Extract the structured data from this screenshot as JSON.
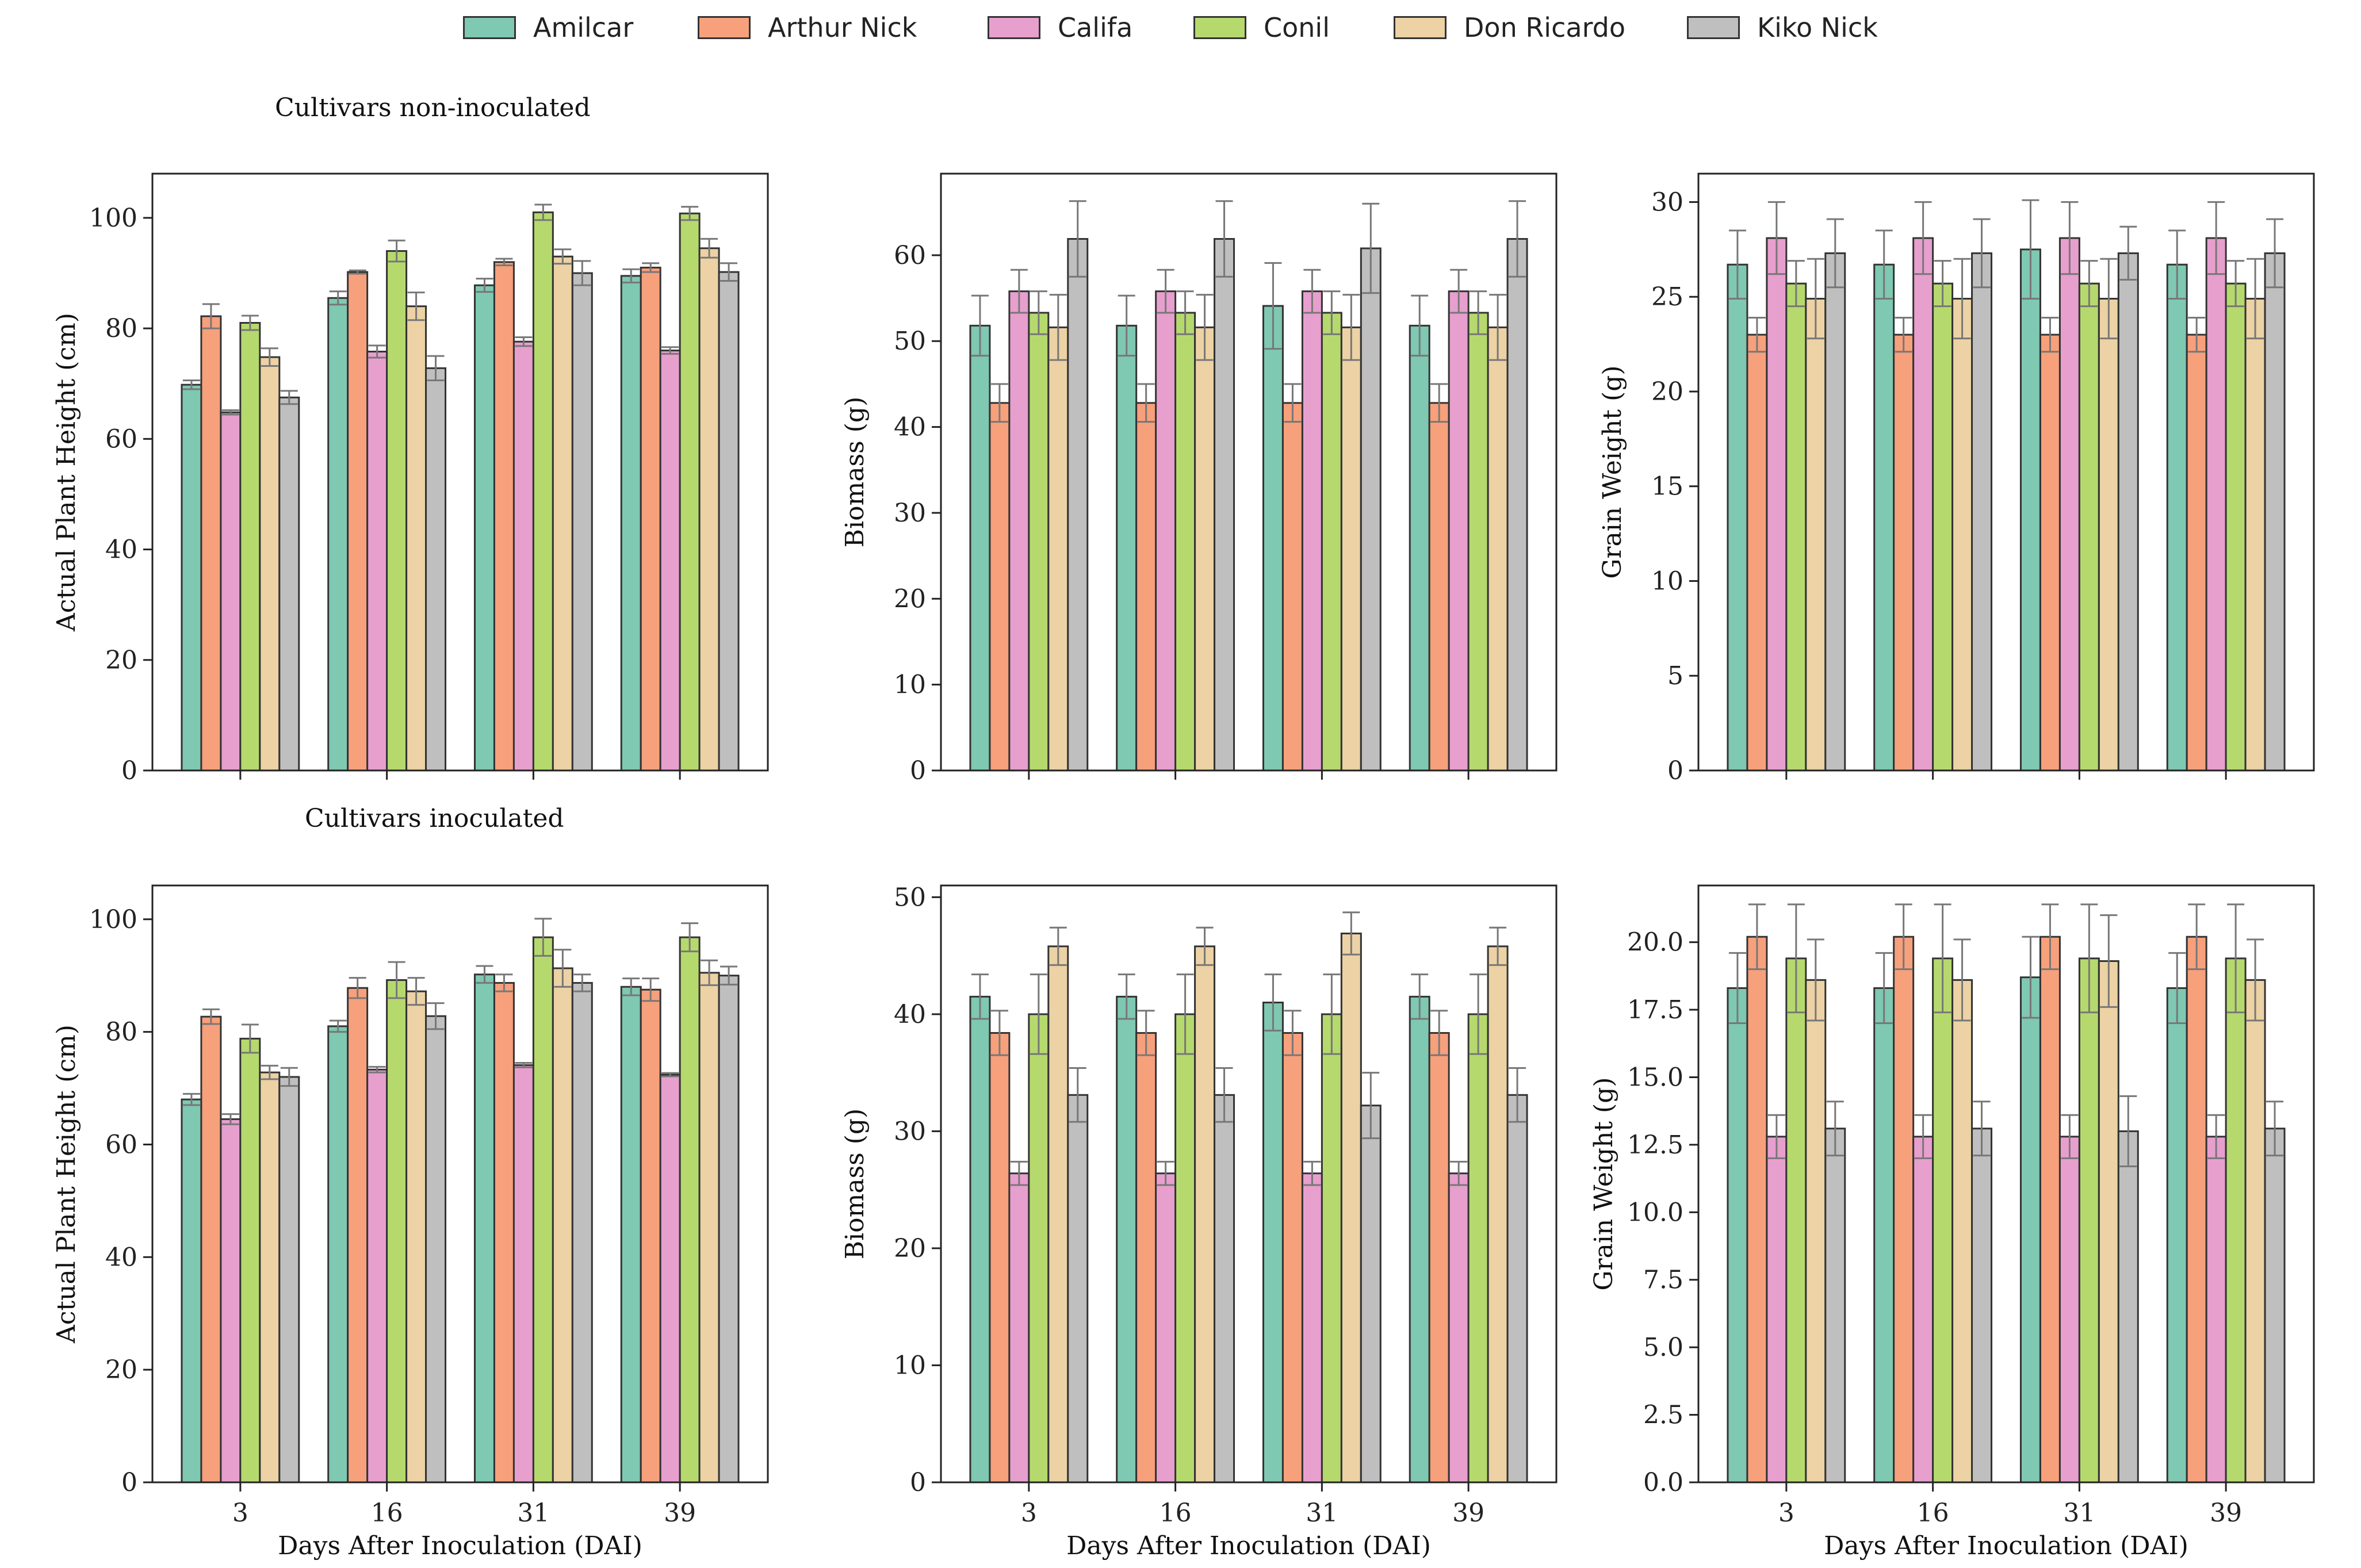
{
  "legend": [
    {
      "name": "Amilcar",
      "color": "#7fc8b2"
    },
    {
      "name": "Arthur Nick",
      "color": "#f7a07c"
    },
    {
      "name": "Califa",
      "color": "#e79fce"
    },
    {
      "name": "Conil",
      "color": "#b6d96e"
    },
    {
      "name": "Don Ricardo",
      "color": "#ecd2a4"
    },
    {
      "name": "Kiko Nick",
      "color": "#bfbfbf"
    }
  ],
  "row_titles": {
    "top": "Cultivars non-inoculated",
    "bottom": "Cultivars inoculated"
  },
  "chart_data": [
    {
      "type": "bar",
      "title": "",
      "xlabel": "",
      "ylabel": "Actual Plant Height (cm)",
      "categories": [
        "3",
        "16",
        "31",
        "39"
      ],
      "show_xticklabels": false,
      "ylim": [
        0,
        108
      ],
      "yticks": [
        0,
        20,
        40,
        60,
        80,
        100
      ],
      "series": [
        {
          "name": "Amilcar",
          "values": [
            69.8,
            85.5,
            87.8,
            89.5
          ],
          "errors": [
            0.8,
            1.2,
            1.2,
            1.2
          ]
        },
        {
          "name": "Arthur Nick",
          "values": [
            82.2,
            90.2,
            92.0,
            91.0
          ],
          "errors": [
            2.2,
            0.3,
            0.6,
            0.8
          ]
        },
        {
          "name": "Califa",
          "values": [
            64.8,
            75.8,
            77.6,
            76.0
          ],
          "errors": [
            0.4,
            1.1,
            0.8,
            0.6
          ]
        },
        {
          "name": "Conil",
          "values": [
            81.0,
            94.0,
            101.0,
            100.8
          ],
          "errors": [
            1.3,
            1.9,
            1.4,
            1.2
          ]
        },
        {
          "name": "Don Ricardo",
          "values": [
            74.8,
            84.0,
            93.0,
            94.5
          ],
          "errors": [
            1.6,
            2.5,
            1.3,
            1.7
          ]
        },
        {
          "name": "Kiko Nick",
          "values": [
            67.5,
            72.8,
            90.0,
            90.2
          ],
          "errors": [
            1.2,
            2.2,
            2.2,
            1.6
          ]
        }
      ]
    },
    {
      "type": "bar",
      "title": "",
      "xlabel": "",
      "ylabel": "Biomass (g)",
      "categories": [
        "3",
        "16",
        "31",
        "39"
      ],
      "show_xticklabels": false,
      "ylim": [
        0,
        69.5
      ],
      "yticks": [
        0,
        10,
        20,
        30,
        40,
        50,
        60
      ],
      "series": [
        {
          "name": "Amilcar",
          "values": [
            51.8,
            51.8,
            54.1,
            51.8
          ],
          "errors": [
            3.5,
            3.5,
            5.0,
            3.5
          ]
        },
        {
          "name": "Arthur Nick",
          "values": [
            42.8,
            42.8,
            42.8,
            42.8
          ],
          "errors": [
            2.2,
            2.2,
            2.2,
            2.2
          ]
        },
        {
          "name": "Califa",
          "values": [
            55.8,
            55.8,
            55.8,
            55.8
          ],
          "errors": [
            2.5,
            2.5,
            2.5,
            2.5
          ]
        },
        {
          "name": "Conil",
          "values": [
            53.3,
            53.3,
            53.3,
            53.3
          ],
          "errors": [
            2.5,
            2.5,
            2.5,
            2.5
          ]
        },
        {
          "name": "Don Ricardo",
          "values": [
            51.6,
            51.6,
            51.6,
            51.6
          ],
          "errors": [
            3.8,
            3.8,
            3.8,
            3.8
          ]
        },
        {
          "name": "Kiko Nick",
          "values": [
            61.9,
            61.9,
            60.8,
            61.9
          ],
          "errors": [
            4.4,
            4.4,
            5.2,
            4.4
          ]
        }
      ]
    },
    {
      "type": "bar",
      "title": "",
      "xlabel": "",
      "ylabel": "Grain Weight (g)",
      "categories": [
        "3",
        "16",
        "31",
        "39"
      ],
      "show_xticklabels": false,
      "ylim": [
        0,
        31.5
      ],
      "yticks": [
        0,
        5,
        10,
        15,
        20,
        25,
        30
      ],
      "series": [
        {
          "name": "Amilcar",
          "values": [
            26.7,
            26.7,
            27.5,
            26.7
          ],
          "errors": [
            1.8,
            1.8,
            2.6,
            1.8
          ]
        },
        {
          "name": "Arthur Nick",
          "values": [
            23.0,
            23.0,
            23.0,
            23.0
          ],
          "errors": [
            0.9,
            0.9,
            0.9,
            0.9
          ]
        },
        {
          "name": "Califa",
          "values": [
            28.1,
            28.1,
            28.1,
            28.1
          ],
          "errors": [
            1.9,
            1.9,
            1.9,
            1.9
          ]
        },
        {
          "name": "Conil",
          "values": [
            25.7,
            25.7,
            25.7,
            25.7
          ],
          "errors": [
            1.2,
            1.2,
            1.2,
            1.2
          ]
        },
        {
          "name": "Don Ricardo",
          "values": [
            24.9,
            24.9,
            24.9,
            24.9
          ],
          "errors": [
            2.1,
            2.1,
            2.1,
            2.1
          ]
        },
        {
          "name": "Kiko Nick",
          "values": [
            27.3,
            27.3,
            27.3,
            27.3
          ],
          "errors": [
            1.8,
            1.8,
            1.4,
            1.8
          ]
        }
      ]
    },
    {
      "type": "bar",
      "title": "",
      "xlabel": "Days After Inoculation (DAI)",
      "ylabel": "Actual Plant Height (cm)",
      "categories": [
        "3",
        "16",
        "31",
        "39"
      ],
      "show_xticklabels": true,
      "ylim": [
        0,
        106
      ],
      "yticks": [
        0,
        20,
        40,
        60,
        80,
        100
      ],
      "series": [
        {
          "name": "Amilcar",
          "values": [
            68.0,
            81.0,
            90.2,
            88.0
          ],
          "errors": [
            1.0,
            1.0,
            1.5,
            1.5
          ]
        },
        {
          "name": "Arthur Nick",
          "values": [
            82.7,
            87.8,
            88.7,
            87.5
          ],
          "errors": [
            1.3,
            1.8,
            1.5,
            2.0
          ]
        },
        {
          "name": "Califa",
          "values": [
            64.5,
            73.3,
            74.1,
            72.4
          ],
          "errors": [
            0.9,
            0.5,
            0.4,
            0.3
          ]
        },
        {
          "name": "Conil",
          "values": [
            78.8,
            89.2,
            96.8,
            96.8
          ],
          "errors": [
            2.5,
            3.2,
            3.3,
            2.5
          ]
        },
        {
          "name": "Don Ricardo",
          "values": [
            72.8,
            87.2,
            91.3,
            90.5
          ],
          "errors": [
            1.2,
            2.4,
            3.3,
            2.2
          ]
        },
        {
          "name": "Kiko Nick",
          "values": [
            72.0,
            82.8,
            88.7,
            90.0
          ],
          "errors": [
            1.6,
            2.3,
            1.5,
            1.6
          ]
        }
      ]
    },
    {
      "type": "bar",
      "title": "",
      "xlabel": "Days After Inoculation (DAI)",
      "ylabel": "Biomass (g)",
      "categories": [
        "3",
        "16",
        "31",
        "39"
      ],
      "show_xticklabels": true,
      "ylim": [
        0,
        51
      ],
      "yticks": [
        0,
        10,
        20,
        30,
        40,
        50
      ],
      "series": [
        {
          "name": "Amilcar",
          "values": [
            41.5,
            41.5,
            41.0,
            41.5
          ],
          "errors": [
            1.9,
            1.9,
            2.4,
            1.9
          ]
        },
        {
          "name": "Arthur Nick",
          "values": [
            38.4,
            38.4,
            38.4,
            38.4
          ],
          "errors": [
            1.9,
            1.9,
            1.9,
            1.9
          ]
        },
        {
          "name": "Califa",
          "values": [
            26.4,
            26.4,
            26.4,
            26.4
          ],
          "errors": [
            1.0,
            1.0,
            1.0,
            1.0
          ]
        },
        {
          "name": "Conil",
          "values": [
            40.0,
            40.0,
            40.0,
            40.0
          ],
          "errors": [
            3.4,
            3.4,
            3.4,
            3.4
          ]
        },
        {
          "name": "Don Ricardo",
          "values": [
            45.8,
            45.8,
            46.9,
            45.8
          ],
          "errors": [
            1.6,
            1.6,
            1.8,
            1.6
          ]
        },
        {
          "name": "Kiko Nick",
          "values": [
            33.1,
            33.1,
            32.2,
            33.1
          ],
          "errors": [
            2.3,
            2.3,
            2.8,
            2.3
          ]
        }
      ]
    },
    {
      "type": "bar",
      "title": "",
      "xlabel": "Days After Inoculation (DAI)",
      "ylabel": "Grain Weight (g)",
      "categories": [
        "3",
        "16",
        "31",
        "39"
      ],
      "show_xticklabels": true,
      "ylim": [
        0,
        22.1
      ],
      "yticks": [
        0.0,
        2.5,
        5.0,
        7.5,
        10.0,
        12.5,
        15.0,
        17.5,
        20.0
      ],
      "series": [
        {
          "name": "Amilcar",
          "values": [
            18.3,
            18.3,
            18.7,
            18.3
          ],
          "errors": [
            1.3,
            1.3,
            1.5,
            1.3
          ]
        },
        {
          "name": "Arthur Nick",
          "values": [
            20.2,
            20.2,
            20.2,
            20.2
          ],
          "errors": [
            1.2,
            1.2,
            1.2,
            1.2
          ]
        },
        {
          "name": "Califa",
          "values": [
            12.8,
            12.8,
            12.8,
            12.8
          ],
          "errors": [
            0.8,
            0.8,
            0.8,
            0.8
          ]
        },
        {
          "name": "Conil",
          "values": [
            19.4,
            19.4,
            19.4,
            19.4
          ],
          "errors": [
            2.0,
            2.0,
            2.0,
            2.0
          ]
        },
        {
          "name": "Don Ricardo",
          "values": [
            18.6,
            18.6,
            19.3,
            18.6
          ],
          "errors": [
            1.5,
            1.5,
            1.7,
            1.5
          ]
        },
        {
          "name": "Kiko Nick",
          "values": [
            13.1,
            13.1,
            13.0,
            13.1
          ],
          "errors": [
            1.0,
            1.0,
            1.3,
            1.0
          ]
        }
      ]
    }
  ]
}
